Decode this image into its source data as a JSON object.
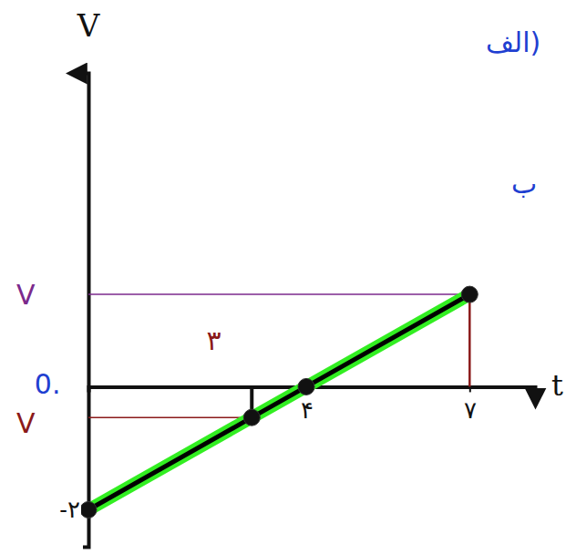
{
  "chart_data": {
    "type": "line",
    "x_label": "t",
    "y_label": "V",
    "x": [
      0,
      3,
      4,
      7
    ],
    "values": [
      -2,
      -0.5,
      0,
      1.5
    ],
    "color": "#000000",
    "marker": "circle",
    "xlim": [
      0,
      8.2
    ],
    "ylim": [
      -2.6,
      5.1
    ],
    "xticks": [
      {
        "value": 4,
        "label": "۴"
      },
      {
        "value": 7,
        "label": "۷"
      }
    ],
    "yticks": [
      {
        "value": -2,
        "label": "-۲"
      }
    ],
    "annotations": [
      {
        "text": "V",
        "x": -1.15,
        "y": 1.5,
        "color": "#7b2a8c"
      },
      {
        "text": "V",
        "x": -1.15,
        "y": -0.6,
        "color": "#8b1a1a"
      },
      {
        "text": "۳",
        "x": 2.3,
        "y": 0.75,
        "color": "#8b1a1a"
      },
      {
        "text": "0.",
        "x": -0.75,
        "y": 0.05,
        "color": "#1f3fd1"
      },
      {
        "text": "الف)",
        "x": 7.8,
        "y": 5.6,
        "color": "#1f3fd1"
      },
      {
        "text": "ب",
        "x": 8.0,
        "y": 3.3,
        "color": "#1f3fd1"
      }
    ]
  }
}
